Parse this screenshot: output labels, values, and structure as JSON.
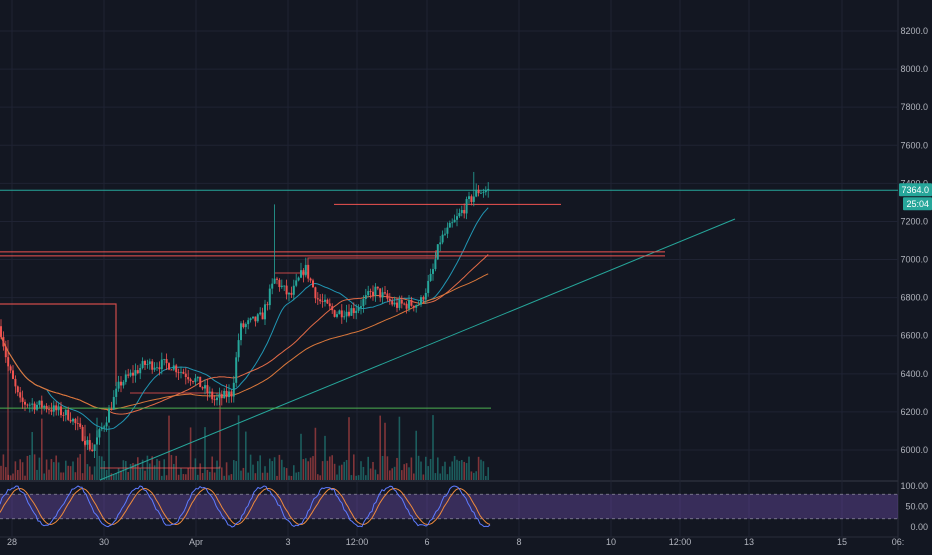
{
  "chart_data": {
    "type": "candlestick",
    "price_axis": {
      "ticks": [
        "8200.0",
        "8000.0",
        "7800.0",
        "7600.0",
        "7400.0",
        "7200.0",
        "7000.0",
        "6800.0",
        "6600.0",
        "6400.0",
        "6200.0",
        "6000.0"
      ],
      "tick_values": [
        8200,
        8000,
        7800,
        7600,
        7400,
        7200,
        7000,
        6800,
        6600,
        6400,
        6200,
        6000
      ],
      "range": [
        5830,
        8260
      ]
    },
    "last_price": {
      "label": "7364.0",
      "value": 7364
    },
    "countdown": {
      "label": "25:04"
    },
    "time_axis": {
      "ticks": [
        "28",
        "30",
        "Apr",
        "3",
        "12:00",
        "6",
        "8",
        "10",
        "12:00",
        "13",
        "15",
        "06:"
      ]
    },
    "rsi_axis": {
      "ticks": [
        "100.00",
        "50.00",
        "0.00"
      ],
      "tick_values": [
        100,
        50,
        0
      ],
      "band": [
        20,
        80
      ]
    },
    "horizontal_lines": [
      {
        "name": "resistance-cyan",
        "value": 7364,
        "color": "#26a69a"
      },
      {
        "name": "upper-red",
        "value": 7290,
        "color": "#ef5350"
      },
      {
        "name": "lower-red-double",
        "value": 7030,
        "color": "#ef5350"
      },
      {
        "name": "green-support",
        "value": 6220,
        "color": "#4caf50"
      }
    ],
    "colors": {
      "up": "#26a69a",
      "down": "#ef5350",
      "grid": "#1f2333",
      "axis_text": "#b2b5be",
      "ma_short": "#2196b3",
      "ma_mid": "#e26b47",
      "ma_long": "#d9773b",
      "trendline": "#26a69a",
      "rsi_band": "#7e57c2",
      "stoch_k": "#5e7bff",
      "stoch_d": "#ef8a3c"
    }
  }
}
